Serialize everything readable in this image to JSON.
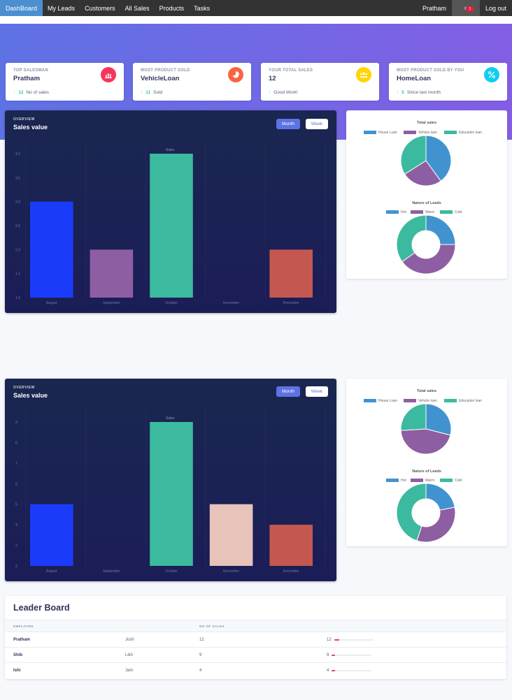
{
  "nav": {
    "items": [
      "DashBoard",
      "My Leads",
      "Customers",
      "All Sales",
      "Products",
      "Tasks"
    ],
    "user": "Pratham",
    "notification_count": "1",
    "logout": "Log out"
  },
  "stats": [
    {
      "title": "TOP SALESMAN",
      "value": "Pratham",
      "delta": "12",
      "note": "No of sales",
      "icon": "chart-bar-icon",
      "color": "#f5365c"
    },
    {
      "title": "MOST PRODUCT SOLD",
      "value": "VehicleLoan",
      "delta": "11",
      "note": "Sold",
      "icon": "chart-pie-icon",
      "color": "#fb6340"
    },
    {
      "title": "YOUR TOTAL SALES",
      "value": "12",
      "delta": "",
      "note": "Good Work!",
      "icon": "users-icon",
      "color": "#ffd600"
    },
    {
      "title": "MOST PRODUCT SOLD BY YOU",
      "value": "HomeLoan",
      "delta": "5",
      "note": "Since last month",
      "icon": "percent-icon",
      "color": "#11cdef"
    }
  ],
  "sales_panel": {
    "overline": "OVERVIEW",
    "title": "Sales value",
    "month_label": "Month",
    "week_label": "Week"
  },
  "pie_panel": {
    "total_title": "Total sales",
    "nature_title": "Nature of Leads"
  },
  "colors": {
    "house": "#4193cf",
    "vehicle": "#8e5ea2",
    "education": "#3cba9f",
    "bar_blue": "#1a3cfa",
    "bar_purple": "#8e5ea2",
    "bar_teal": "#3cba9f",
    "bar_pink": "#e8c3b9",
    "bar_red": "#c45850"
  },
  "chart_data": [
    {
      "type": "bar",
      "title": "Sales",
      "categories": [
        "August",
        "September",
        "October",
        "November",
        "December"
      ],
      "values": [
        3.0,
        2.0,
        4.0,
        1.0,
        2.0
      ],
      "yticks": [
        "4.0",
        "3.5",
        "3.0",
        "2.5",
        "2.0",
        "1.5",
        "1.0"
      ],
      "ylim": [
        1.0,
        4.0
      ]
    },
    {
      "type": "pie",
      "title": "Total sales",
      "labels": [
        "House Loan",
        "Vehicle loan",
        "Education loan"
      ],
      "values": [
        40,
        26,
        34
      ]
    },
    {
      "type": "pie",
      "title": "Nature of Leads",
      "labels": [
        "Hot",
        "Warm",
        "Cold"
      ],
      "values": [
        25,
        40,
        35
      ]
    },
    {
      "type": "bar",
      "title": "Sales",
      "categories": [
        "August",
        "September",
        "October",
        "November",
        "December"
      ],
      "values": [
        5,
        2,
        9,
        5,
        4
      ],
      "yticks": [
        "9",
        "8",
        "7",
        "6",
        "5",
        "4",
        "3",
        "2"
      ],
      "ylim": [
        2,
        9
      ]
    },
    {
      "type": "pie",
      "title": "Total sales",
      "labels": [
        "House Loan",
        "Vehicle loan",
        "Education loan"
      ],
      "values": [
        29,
        45,
        26
      ]
    },
    {
      "type": "pie",
      "title": "Nature of Leads",
      "labels": [
        "Hot",
        "Warm",
        "Cold"
      ],
      "values": [
        22,
        33,
        45
      ]
    }
  ],
  "leaderboard": {
    "title": "Leader Board",
    "headers": [
      "EMPLOYEE",
      "NO OF SALES"
    ],
    "rows": [
      {
        "name": "Pratham",
        "manager": "Josh",
        "sales": "12",
        "pct": 0.12
      },
      {
        "name": "Shib",
        "manager": "Likh",
        "sales": "9",
        "pct": 0.09
      },
      {
        "name": "Ishi",
        "manager": "Jam",
        "sales": "4",
        "pct": 0.08
      }
    ]
  }
}
